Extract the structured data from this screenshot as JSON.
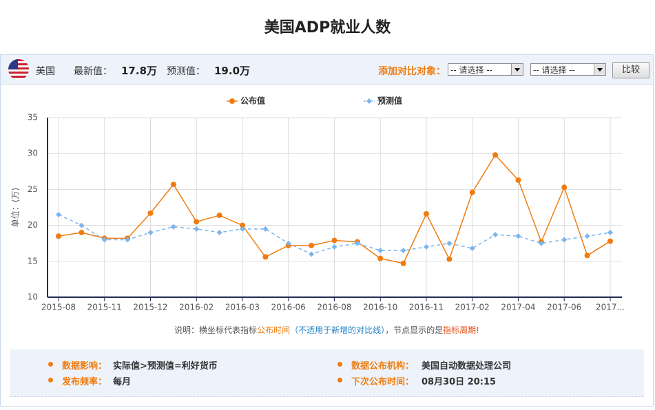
{
  "title": "美国ADP就业人数",
  "header": {
    "country": "美国",
    "latest_label": "最新值：",
    "latest": "17.8万",
    "forecast_label": "预测值：",
    "forecast": "19.0万",
    "compare_label": "添加对比对象：",
    "select_1": "-- 请选择 --",
    "select_2": "-- 请选择 --",
    "button": "比较"
  },
  "chart_data": {
    "type": "line",
    "y_label": "单位：(万)",
    "categories": [
      "2015-08",
      null,
      "2015-11",
      null,
      "2015-12",
      null,
      "2016-02",
      null,
      "2016-03",
      null,
      "2016-06",
      null,
      "2016-08",
      null,
      "2016-10",
      null,
      "2016-11",
      null,
      "2017-02",
      null,
      "2017-04",
      null,
      "2017-06",
      null,
      "2017..."
    ],
    "series": [
      {
        "name": "公布值",
        "color": "#f07c0f",
        "dashed": false,
        "marker": "circle",
        "values": [
          18.5,
          19.0,
          18.2,
          18.2,
          21.7,
          25.7,
          20.5,
          21.4,
          20.0,
          15.6,
          17.2,
          17.2,
          17.9,
          17.7,
          15.4,
          14.7,
          21.6,
          15.3,
          24.6,
          29.8,
          26.3,
          17.7,
          25.3,
          15.8,
          17.8
        ]
      },
      {
        "name": "预测值",
        "color": "#7cb5ec",
        "dashed": true,
        "marker": "diamond",
        "values": [
          21.5,
          20.0,
          18.0,
          18.0,
          19.0,
          19.8,
          19.5,
          19.0,
          19.5,
          19.5,
          17.5,
          16.0,
          17.0,
          17.5,
          16.5,
          16.5,
          17.0,
          17.5,
          16.8,
          18.7,
          18.5,
          17.5,
          18.0,
          18.5,
          19.0
        ]
      }
    ],
    "ylim": [
      10,
      35
    ],
    "yticks": [
      10,
      15,
      20,
      25,
      30,
      35
    ],
    "grid": true,
    "legend": "top"
  },
  "note": [
    "说明：横坐标代表指标",
    "公布时间",
    "（不适用于新增的对比线）",
    "，节点显示的是",
    "指标周期",
    "!"
  ],
  "info": [
    {
      "label": "数据影响：",
      "value": "实际值>预测值=利好货币"
    },
    {
      "label": "数据公布机构：",
      "value": "美国自动数据处理公司"
    },
    {
      "label": "发布频率：",
      "value": "每月"
    },
    {
      "label": "下次公布时间：",
      "value": "08月30日 20:15"
    }
  ]
}
